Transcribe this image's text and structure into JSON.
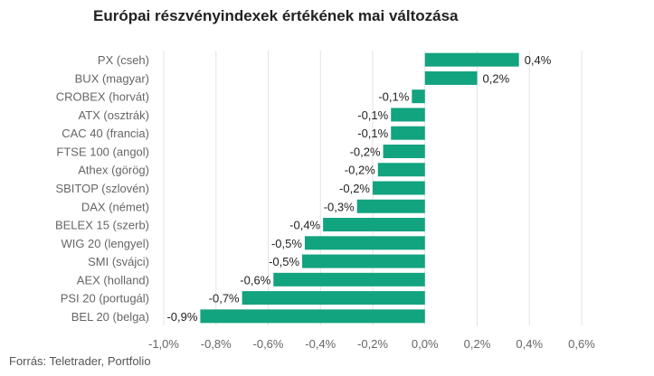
{
  "chart_data": {
    "type": "bar",
    "orientation": "horizontal",
    "title": "Európai részvényindexek értékének mai változása",
    "xlabel": "",
    "ylabel": "",
    "categories": [
      "PX (cseh)",
      "BUX (magyar)",
      "CROBEX (horvát)",
      "ATX (osztrák)",
      "CAC 40 (francia)",
      "FTSE 100 (angol)",
      "Athex (görög)",
      "SBITOP (szlovén)",
      "DAX (német)",
      "BELEX 15 (szerb)",
      "WIG 20 (lengyel)",
      "SMI (svájci)",
      "AEX (holland)",
      "PSI 20 (portugál)",
      "BEL 20 (belga)"
    ],
    "values": [
      0.36,
      0.2,
      -0.05,
      -0.13,
      -0.13,
      -0.16,
      -0.18,
      -0.2,
      -0.26,
      -0.39,
      -0.46,
      -0.47,
      -0.58,
      -0.7,
      -0.86
    ],
    "value_labels": [
      "0,4%",
      "0,2%",
      "-0,1%",
      "-0,1%",
      "-0,1%",
      "-0,2%",
      "-0,2%",
      "-0,2%",
      "-0,3%",
      "-0,4%",
      "-0,5%",
      "-0,5%",
      "-0,6%",
      "-0,7%",
      "-0,9%"
    ],
    "xlim": [
      -1.0,
      0.6
    ],
    "ticks": [
      -1.0,
      -0.8,
      -0.6,
      -0.4,
      -0.2,
      0.0,
      0.2,
      0.4,
      0.6
    ],
    "tick_labels": [
      "-1,0%",
      "-0,8%",
      "-0,6%",
      "-0,4%",
      "-0,2%",
      "0,0%",
      "0,2%",
      "0,4%",
      "0,6%"
    ],
    "grid": true,
    "bar_color": "#12a37f",
    "grid_color": "#e3e3e3"
  },
  "source": "Forrás: Teletrader, Portfolio"
}
